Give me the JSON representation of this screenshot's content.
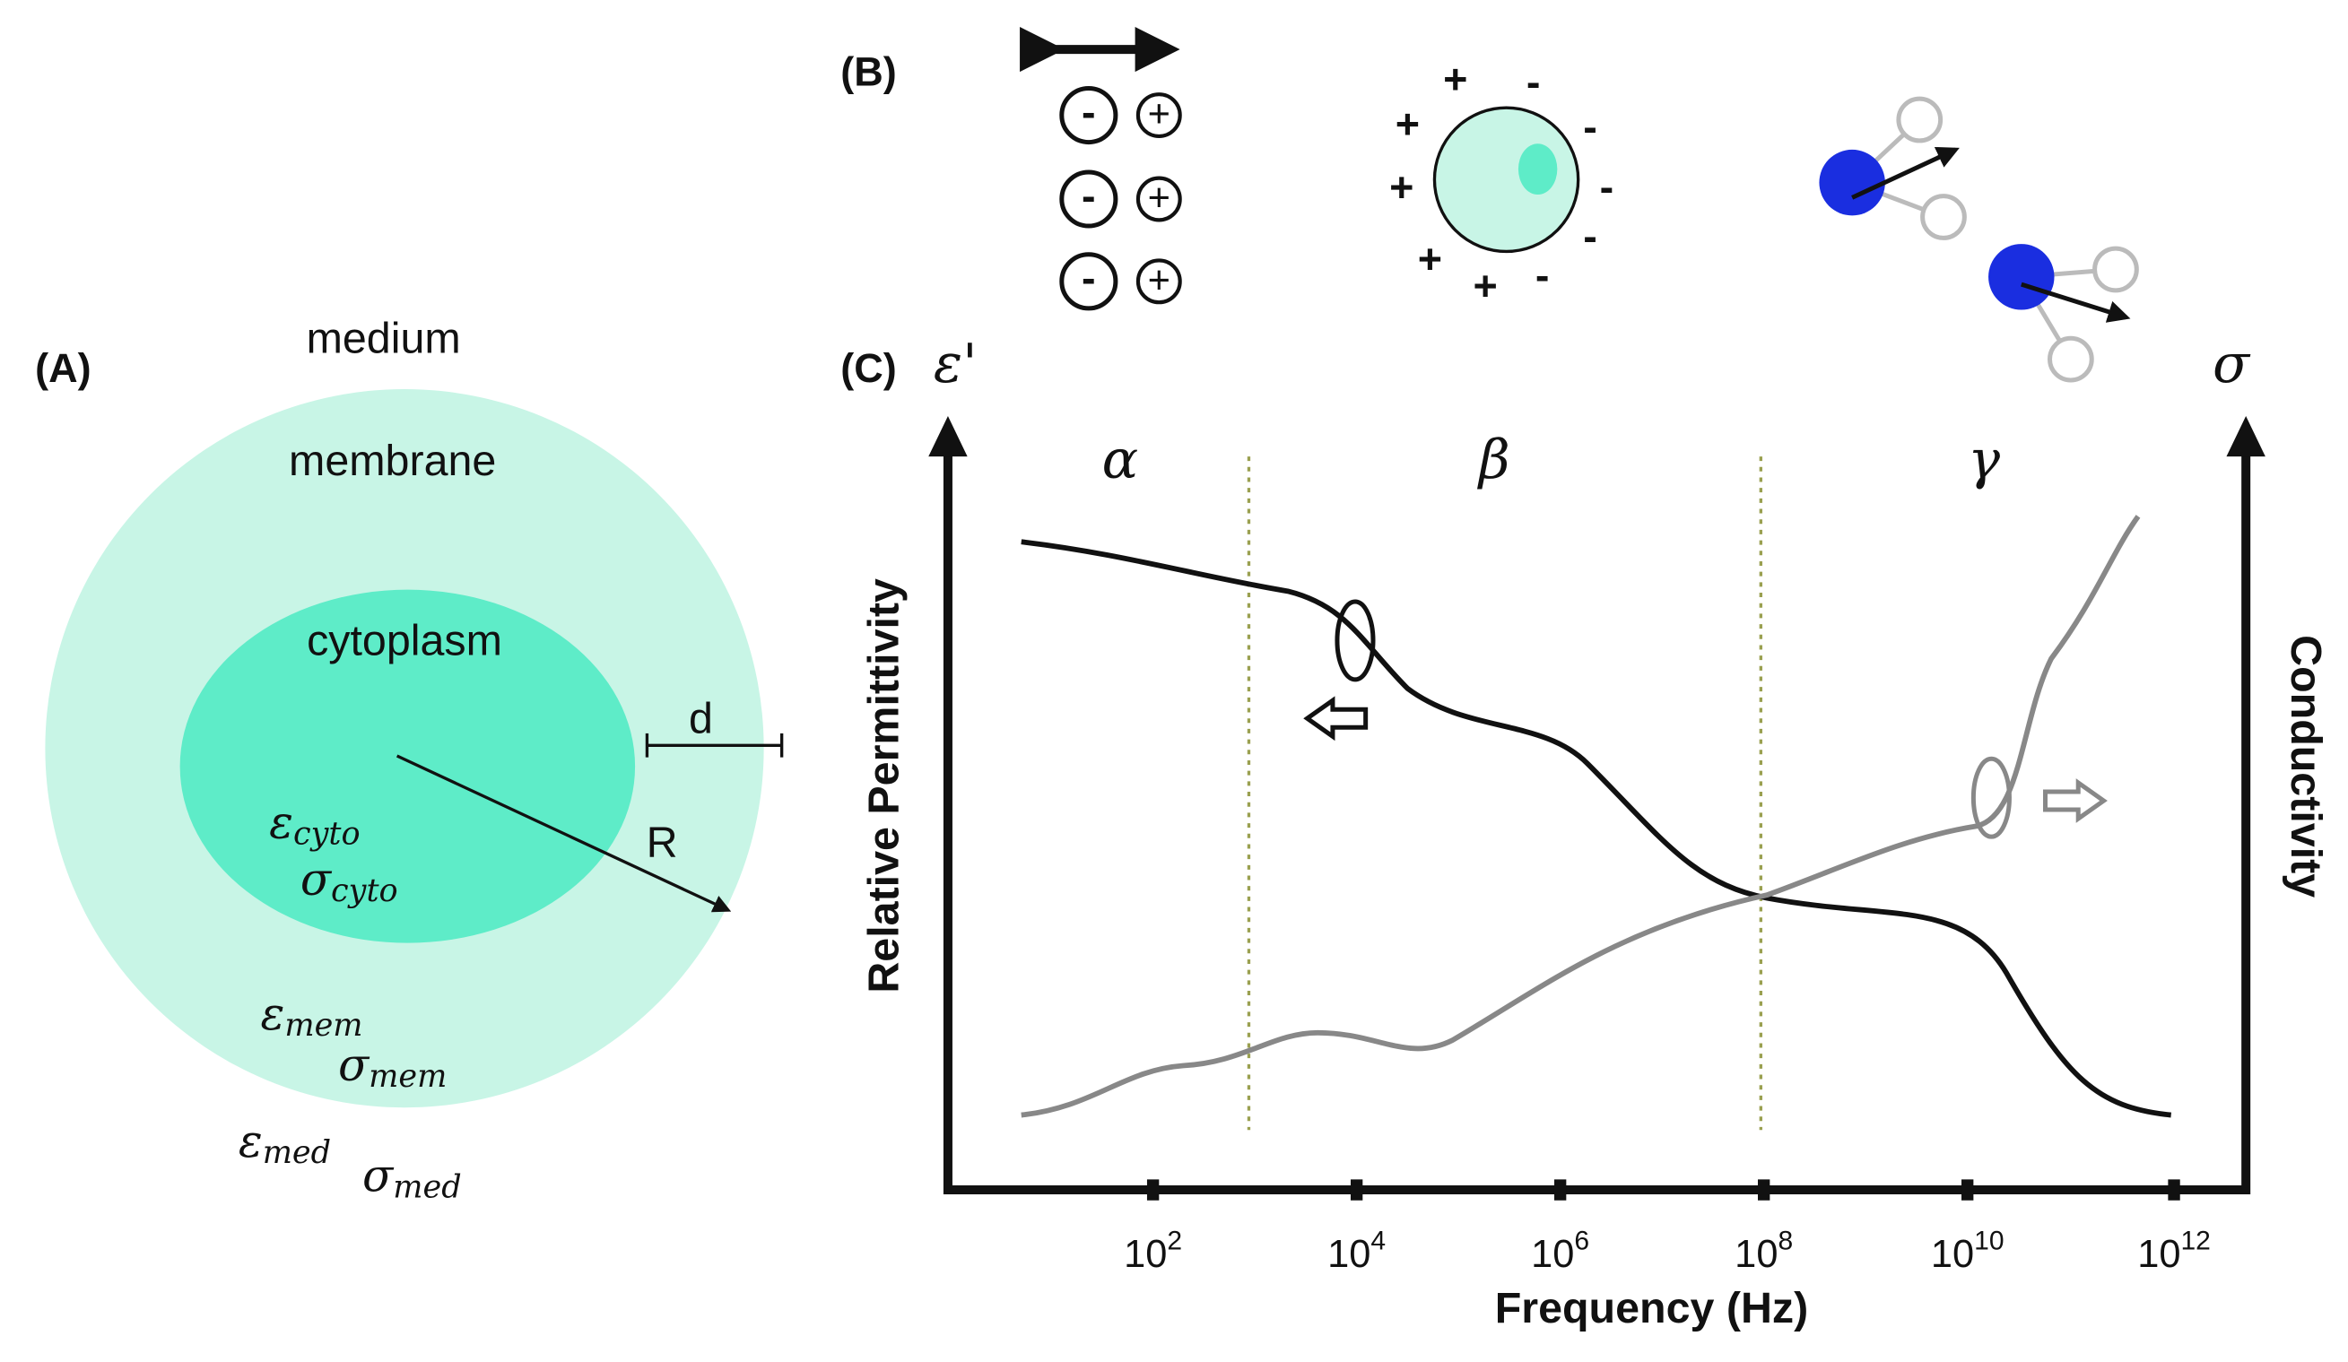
{
  "panels": {
    "A": {
      "label": "(A)",
      "medium": "medium",
      "membrane": "membrane",
      "cytoplasm": "cytoplasm",
      "d": "d",
      "R": "R",
      "eps_cyto": {
        "symbol": "ε",
        "sub": "cyto"
      },
      "sig_cyto": {
        "symbol": "σ",
        "sub": "cyto"
      },
      "eps_mem": {
        "symbol": "ε",
        "sub": "mem"
      },
      "sig_mem": {
        "symbol": "σ",
        "sub": "mem"
      },
      "eps_med": {
        "symbol": "ε",
        "sub": "med"
      },
      "sig_med": {
        "symbol": "σ",
        "sub": "med"
      }
    },
    "B": {
      "label": "(B)",
      "dipoles": [
        [
          "-",
          "+"
        ],
        [
          "-",
          "+"
        ],
        [
          "-",
          "+"
        ]
      ],
      "cell_charges": [
        "+",
        "-",
        "+",
        "-",
        "+",
        "-",
        "+",
        "-",
        "+",
        "-"
      ]
    },
    "C": {
      "label": "(C)",
      "left_symbol": "ε'",
      "right_symbol": "σ",
      "regions": [
        "α",
        "β",
        "γ"
      ],
      "y_label": "Relative Permittivity",
      "y2_label": "Conductivity",
      "x_label": "Frequency (Hz)",
      "xticks": [
        {
          "base": "10",
          "exp": "2"
        },
        {
          "base": "10",
          "exp": "4"
        },
        {
          "base": "10",
          "exp": "6"
        },
        {
          "base": "10",
          "exp": "8"
        },
        {
          "base": "10",
          "exp": "10"
        },
        {
          "base": "10",
          "exp": "12"
        }
      ]
    }
  }
}
